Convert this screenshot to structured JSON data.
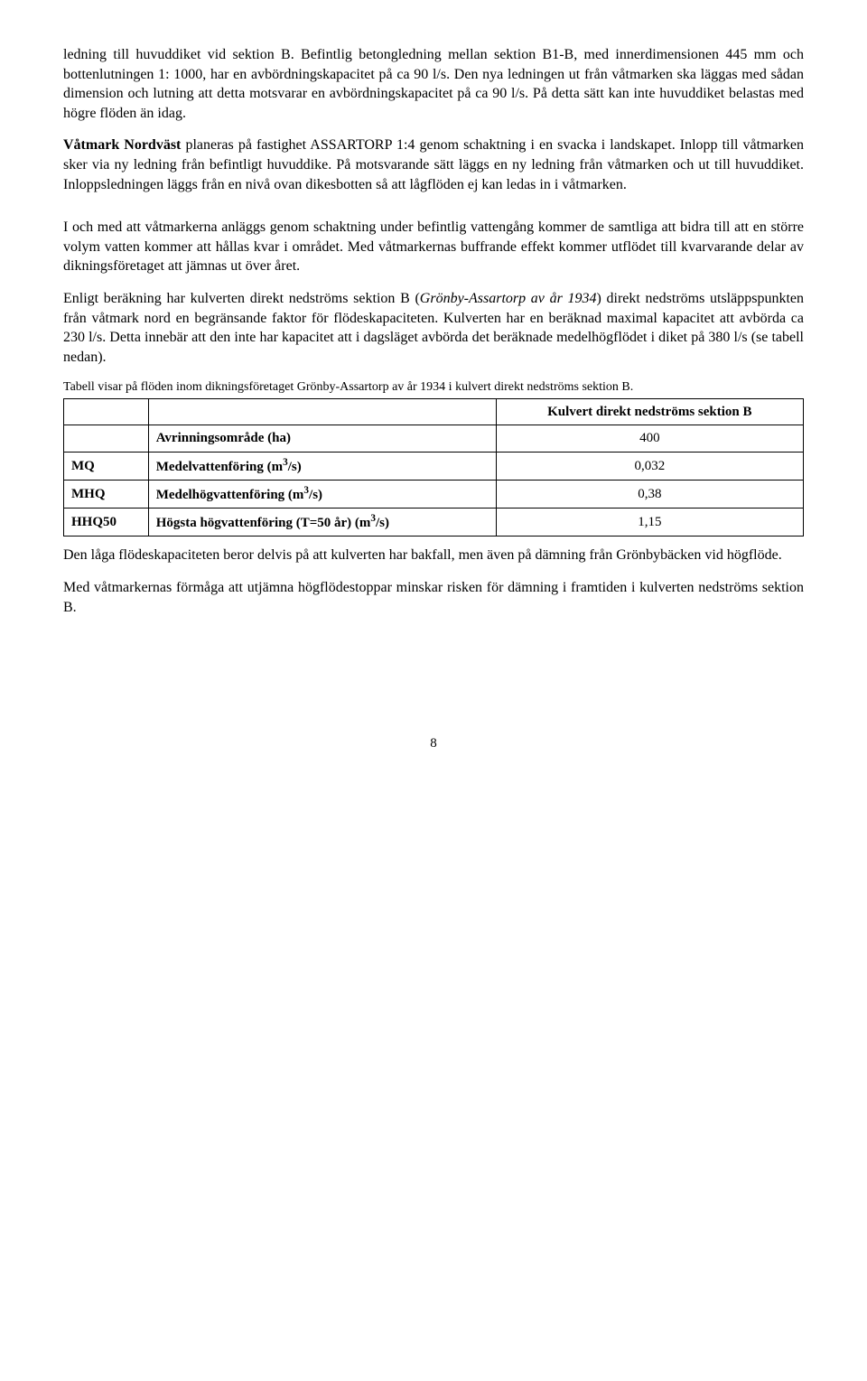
{
  "para1": "ledning till huvuddiket vid sektion B. Befintlig betongledning mellan sektion B1-B, med innerdimensionen 445 mm och bottenlutningen 1: 1000, har en avbördningskapacitet på ca 90 l/s. Den nya ledningen ut från våtmarken ska läggas med sådan dimension och lutning att detta motsvarar en avbördningskapacitet på ca 90 l/s. På detta sätt kan inte huvuddiket belastas med högre flöden än idag.",
  "para2_lead": "Våtmark Nordväst",
  "para2_rest": " planeras på fastighet ASSARTORP 1:4 genom schaktning i en svacka i landskapet. Inlopp till våtmarken sker via ny ledning från befintligt huvuddike. På motsvarande sätt läggs en ny ledning från våtmarken och ut till huvuddiket. Inloppsledningen läggs från en nivå ovan dikesbotten så att lågflöden ej kan ledas in i våtmarken.",
  "para3": "I och med att våtmarkerna anläggs genom schaktning under befintlig vattengång kommer de samtliga att bidra till att en större volym vatten kommer att hållas kvar i området. Med våtmarkernas buffrande effekt kommer utflödet till kvarvarande delar av dikningsföretaget att jämnas ut över året.",
  "para4_a": "Enligt beräkning har kulverten direkt nedströms sektion B (",
  "para4_i": "Grönby-Assartorp av år 1934",
  "para4_b": ") direkt nedströms utsläppspunkten från våtmark nord en begränsande faktor för flödeskapaciteten. Kulverten har en beräknad maximal kapacitet att avbörda ca 230 l/s. Detta innebär att den inte har kapacitet att i dagsläget avbörda det beräknade medelhögflödet i diket på 380 l/s (se tabell nedan).",
  "caption": "Tabell visar på flöden inom dikningsföretaget Grönby-Assartorp av år 1934 i kulvert direkt nedströms sektion B.",
  "table": {
    "header_col": "Kulvert direkt nedströms sektion B",
    "rows": [
      {
        "code": "",
        "label": "Avrinningsområde (ha)",
        "sup": "",
        "value": "400"
      },
      {
        "code": "MQ",
        "label": "Medelvattenföring (m",
        "sup": "3",
        "tail": "/s)",
        "value": "0,032"
      },
      {
        "code": "MHQ",
        "label": "Medelhögvattenföring (m",
        "sup": "3",
        "tail": "/s)",
        "value": "0,38"
      },
      {
        "code": "HHQ50",
        "label": "Högsta högvattenföring (T=50 år) (m",
        "sup": "3",
        "tail": "/s)",
        "value": "1,15"
      }
    ]
  },
  "para5": "Den låga flödeskapaciteten beror delvis på att kulverten har bakfall, men även på dämning från Grönbybäcken vid högflöde.",
  "para6": "Med våtmarkernas förmåga att utjämna högflödestoppar minskar risken för dämning i framtiden i kulverten nedströms sektion B.",
  "page": "8"
}
